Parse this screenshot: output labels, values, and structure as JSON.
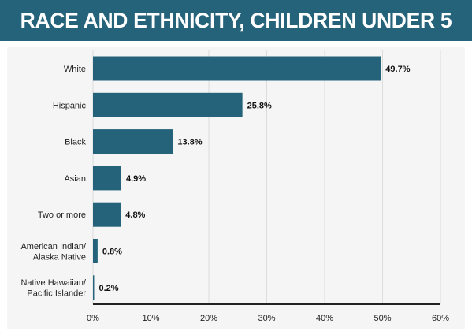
{
  "header": {
    "title": "RACE AND ETHNICITY, CHILDREN UNDER 5"
  },
  "colors": {
    "title_background": "#24637a",
    "bar": "#24637a",
    "grid": "#dcdcdc",
    "axis": "#222222",
    "plot_background": "#f5f5f5"
  },
  "chart_data": {
    "type": "bar",
    "orientation": "horizontal",
    "title": "RACE AND ETHNICITY, CHILDREN UNDER 5",
    "categories": [
      [
        "White"
      ],
      [
        "Hispanic"
      ],
      [
        "Black"
      ],
      [
        "Asian"
      ],
      [
        "Two or more"
      ],
      [
        "American Indian/",
        "Alaska Native"
      ],
      [
        "Native Hawaiian/",
        "Pacific Islander"
      ]
    ],
    "values": [
      49.7,
      25.8,
      13.8,
      4.9,
      4.8,
      0.8,
      0.2
    ],
    "value_labels": [
      "49.7%",
      "25.8%",
      "13.8%",
      "4.9%",
      "4.8%",
      "0.8%",
      "0.2%"
    ],
    "x_ticks": [
      0,
      10,
      20,
      30,
      40,
      50,
      60
    ],
    "x_tick_labels": [
      "0%",
      "10%",
      "20%",
      "30%",
      "40%",
      "50%",
      "60%"
    ],
    "xlim": [
      0,
      60
    ],
    "xlabel": "",
    "ylabel": "",
    "grid": true,
    "legend": false
  }
}
